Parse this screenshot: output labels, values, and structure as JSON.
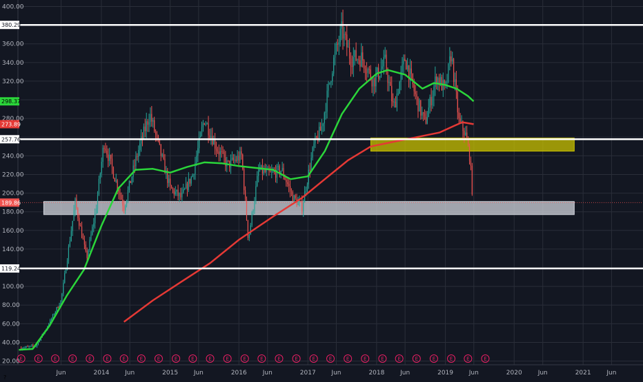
{
  "chart_data": {
    "type": "candlestick",
    "theme": {
      "background": "#131722",
      "grid": "#2a2e39",
      "text": "#b2b5be",
      "up_candle": "#26a69a",
      "down_candle": "#ef5350",
      "earnings_marker": "#e91e63"
    },
    "grid": true,
    "y_axis": {
      "position": "left",
      "range": [
        16,
        407
      ],
      "ticks": [
        20,
        40,
        60,
        80,
        100,
        120,
        140,
        160,
        180,
        200,
        220,
        240,
        260,
        280,
        300,
        320,
        340,
        360,
        380,
        400
      ],
      "tick_labels": [
        "20.00",
        "40.00",
        "60.00",
        "80.00",
        "100.00",
        "",
        "140.00",
        "160.00",
        "180.00",
        "200.00",
        "220.00",
        "240.00",
        "",
        "280.00",
        "",
        "320.00",
        "340.00",
        "360.00",
        "",
        "400.00"
      ]
    },
    "x_axis": {
      "range": [
        "2012-10-15",
        "2021-11-15"
      ],
      "tick_dates": [
        "2013-06-01",
        "2014-01-01",
        "2014-06-01",
        "2015-01-01",
        "2015-06-01",
        "2016-01-01",
        "2016-06-01",
        "2017-01-01",
        "2017-06-01",
        "2018-01-01",
        "2018-06-01",
        "2019-01-01",
        "2019-06-01",
        "2020-01-01",
        "2020-06-01",
        "2021-01-01",
        "2021-06-01"
      ],
      "tick_labels": [
        "Jun",
        "2014",
        "Jun",
        "2015",
        "Jun",
        "2016",
        "Jun",
        "2017",
        "Jun",
        "2018",
        "Jun",
        "2019",
        "Jun",
        "2020",
        "Jun",
        "2021",
        "Jun"
      ]
    },
    "price_anchors": [
      [
        "2012-11-01",
        34
      ],
      [
        "2013-01-15",
        36
      ],
      [
        "2013-03-15",
        55
      ],
      [
        "2013-06-01",
        85
      ],
      [
        "2013-08-15",
        190
      ],
      [
        "2013-10-15",
        130
      ],
      [
        "2013-12-01",
        180
      ],
      [
        "2014-01-15",
        255
      ],
      [
        "2014-03-01",
        225
      ],
      [
        "2014-05-01",
        185
      ],
      [
        "2014-07-15",
        245
      ],
      [
        "2014-09-15",
        285
      ],
      [
        "2014-11-15",
        240
      ],
      [
        "2015-01-01",
        205
      ],
      [
        "2015-03-01",
        195
      ],
      [
        "2015-05-01",
        220
      ],
      [
        "2015-07-01",
        280
      ],
      [
        "2015-09-01",
        250
      ],
      [
        "2015-11-01",
        230
      ],
      [
        "2016-01-15",
        240
      ],
      [
        "2016-02-20",
        150
      ],
      [
        "2016-04-15",
        225
      ],
      [
        "2016-06-15",
        220
      ],
      [
        "2016-08-15",
        225
      ],
      [
        "2016-10-15",
        195
      ],
      [
        "2016-12-01",
        185
      ],
      [
        "2017-02-01",
        250
      ],
      [
        "2017-03-15",
        270
      ],
      [
        "2017-05-15",
        340
      ],
      [
        "2017-06-30",
        375
      ],
      [
        "2017-08-15",
        345
      ],
      [
        "2017-10-15",
        345
      ],
      [
        "2017-12-15",
        320
      ],
      [
        "2018-02-15",
        340
      ],
      [
        "2018-04-01",
        290
      ],
      [
        "2018-06-01",
        345
      ],
      [
        "2018-08-01",
        300
      ],
      [
        "2018-09-15",
        275
      ],
      [
        "2018-11-15",
        325
      ],
      [
        "2019-01-01",
        310
      ],
      [
        "2019-02-01",
        350
      ],
      [
        "2019-03-15",
        275
      ],
      [
        "2019-04-15",
        265
      ],
      [
        "2019-05-10",
        240
      ],
      [
        "2019-05-28",
        190
      ]
    ],
    "series": [
      {
        "name": "",
        "color": "#2bd63a",
        "points": [
          [
            "2012-10-20",
            32
          ],
          [
            "2013-01-01",
            33
          ],
          [
            "2013-04-01",
            58
          ],
          [
            "2013-07-01",
            90
          ],
          [
            "2013-10-01",
            118
          ],
          [
            "2014-01-01",
            165
          ],
          [
            "2014-04-01",
            205
          ],
          [
            "2014-07-01",
            225
          ],
          [
            "2014-10-01",
            226
          ],
          [
            "2015-01-01",
            222
          ],
          [
            "2015-04-01",
            228
          ],
          [
            "2015-07-01",
            233
          ],
          [
            "2015-10-01",
            232
          ],
          [
            "2016-01-01",
            229
          ],
          [
            "2016-04-01",
            227
          ],
          [
            "2016-07-01",
            225
          ],
          [
            "2016-10-01",
            215
          ],
          [
            "2017-01-01",
            218
          ],
          [
            "2017-04-01",
            245
          ],
          [
            "2017-07-01",
            285
          ],
          [
            "2017-10-01",
            312
          ],
          [
            "2018-01-01",
            328
          ],
          [
            "2018-03-01",
            332
          ],
          [
            "2018-06-01",
            327
          ],
          [
            "2018-09-01",
            312
          ],
          [
            "2018-11-01",
            318
          ],
          [
            "2019-01-01",
            316
          ],
          [
            "2019-03-01",
            312
          ],
          [
            "2019-05-01",
            304
          ],
          [
            "2019-05-31",
            298.37
          ]
        ]
      },
      {
        "name": "",
        "color": "#e53935",
        "points": [
          [
            "2014-05-01",
            62
          ],
          [
            "2014-10-01",
            85
          ],
          [
            "2015-03-01",
            105
          ],
          [
            "2015-08-01",
            125
          ],
          [
            "2016-01-01",
            150
          ],
          [
            "2016-07-01",
            175
          ],
          [
            "2016-12-01",
            195
          ],
          [
            "2017-04-01",
            215
          ],
          [
            "2017-08-01",
            235
          ],
          [
            "2017-12-01",
            250
          ],
          [
            "2018-04-01",
            255
          ],
          [
            "2018-08-01",
            260
          ],
          [
            "2018-12-01",
            265
          ],
          [
            "2019-02-15",
            272
          ],
          [
            "2019-04-01",
            276
          ],
          [
            "2019-05-31",
            273.89
          ]
        ]
      }
    ],
    "horizontal_lines": [
      {
        "price": 380.29,
        "label": "380.29",
        "color": "#ffffff"
      },
      {
        "price": 257.76,
        "label": "257.76",
        "color": "#ffffff"
      },
      {
        "price": 119.24,
        "label": "119.24",
        "color": "#ffffff"
      }
    ],
    "zones": [
      {
        "from": "2017-12-01",
        "to": "2020-11-15",
        "low": 245,
        "high": 259,
        "color": "#c9c100"
      },
      {
        "from": "2013-03-01",
        "to": "2020-11-15",
        "low": 177,
        "high": 191,
        "color": "#d1d4dc"
      }
    ],
    "price_tags": [
      {
        "price": 298.37,
        "label": "298.37",
        "bg": "#2bd63a",
        "fg": "#000000"
      },
      {
        "price": 273.89,
        "label": "273.89",
        "bg": "#e53935",
        "fg": "#ffffff"
      },
      {
        "price": 189.86,
        "label": "189.86",
        "bg": "#ef5350",
        "fg": "#ffffff"
      }
    ],
    "last_price": 189.86,
    "earnings_markers": {
      "label": "E",
      "dates": [
        "2012-11-01",
        "2013-02-01",
        "2013-05-01",
        "2013-08-01",
        "2013-11-01",
        "2014-02-01",
        "2014-05-01",
        "2014-08-01",
        "2014-11-01",
        "2015-02-01",
        "2015-05-01",
        "2015-08-01",
        "2015-11-01",
        "2016-02-01",
        "2016-05-01",
        "2016-08-01",
        "2016-11-01",
        "2017-02-01",
        "2017-05-01",
        "2017-08-01",
        "2017-11-01",
        "2018-02-01",
        "2018-05-01",
        "2018-08-01",
        "2018-11-01",
        "2019-02-01",
        "2019-05-01",
        "2019-08-01"
      ]
    }
  },
  "ui": {
    "corner_label": "?"
  }
}
